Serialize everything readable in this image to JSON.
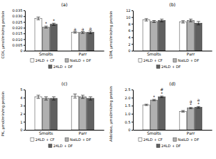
{
  "chart_data": [
    {
      "type": "bar",
      "title": "(a)",
      "ylabel": "COX, μmol/min/mg protein",
      "categories": [
        "Smolts",
        "Parr"
      ],
      "ylim": [
        0,
        0.035
      ],
      "yticks": [
        0,
        0.005,
        {
          "value": 0.01,
          "label": "0.010"
        },
        0.015,
        {
          "value": 0.02,
          "label": "0.020"
        },
        0.025,
        {
          "value": 0.03,
          "label": "0.030"
        },
        0.035
      ],
      "series": [
        {
          "name": "24LD + CF",
          "color": "#ffffff",
          "values": [
            0.028,
            0.016
          ],
          "errors": [
            0.0012,
            0.0008
          ],
          "annotations": [
            [],
            [
              "a"
            ]
          ]
        },
        {
          "name": "NatLD + DF",
          "color": "#b0b0b0",
          "values": [
            0.0205,
            0.0158
          ],
          "errors": [
            0.0008,
            0.0008
          ],
          "annotations": [
            [
              "*"
            ],
            [
              "a"
            ]
          ]
        },
        {
          "name": "24LD + DF",
          "color": "#606060",
          "values": [
            0.023,
            0.016
          ],
          "errors": [
            0.0009,
            0.0012
          ],
          "annotations": [
            [
              "*"
            ],
            [
              "a"
            ]
          ]
        }
      ]
    },
    {
      "type": "bar",
      "title": "(b)",
      "ylabel": "LDH, μmol/min/mg protein",
      "categories": [
        "Smolts",
        "Parr"
      ],
      "ylim": [
        0,
        12
      ],
      "yticks": [
        0,
        2,
        4,
        6,
        8,
        10,
        12
      ],
      "series": [
        {
          "name": "24LD + CF",
          "color": "#ffffff",
          "values": [
            9.2,
            8.6
          ],
          "errors": [
            0.35,
            0.35
          ],
          "annotations": [
            [],
            []
          ]
        },
        {
          "name": "NatLD + DF",
          "color": "#b0b0b0",
          "values": [
            8.7,
            9.0
          ],
          "errors": [
            0.3,
            0.4
          ],
          "annotations": [
            [],
            []
          ]
        },
        {
          "name": "24LD + DF",
          "color": "#606060",
          "values": [
            9.0,
            8.2
          ],
          "errors": [
            0.4,
            0.5
          ],
          "annotations": [
            [],
            []
          ]
        }
      ]
    },
    {
      "type": "bar",
      "title": "(c)",
      "ylabel": "PK, μmol/min/mg protein",
      "categories": [
        "Smolts",
        "Parr"
      ],
      "ylim": [
        0,
        5
      ],
      "yticks": [
        0,
        1,
        2,
        3,
        4,
        5
      ],
      "series": [
        {
          "name": "24LD + CF",
          "color": "#ffffff",
          "values": [
            4.1,
            4.2
          ],
          "errors": [
            0.2,
            0.25
          ],
          "annotations": [
            [],
            []
          ]
        },
        {
          "name": "NatLD + DF",
          "color": "#b0b0b0",
          "values": [
            3.9,
            4.1
          ],
          "errors": [
            0.2,
            0.2
          ],
          "annotations": [
            [],
            []
          ]
        },
        {
          "name": "24LD + DF",
          "color": "#606060",
          "values": [
            3.9,
            3.9
          ],
          "errors": [
            0.2,
            0.2
          ],
          "annotations": [
            [],
            []
          ]
        }
      ]
    },
    {
      "type": "bar",
      "title": "(d)",
      "ylabel": "Aldolase, μmol/min/mg protein",
      "categories": [
        "Smolts",
        "Parr"
      ],
      "ylim": [
        0,
        2.5
      ],
      "yticks": [
        0,
        0.5,
        {
          "value": 1,
          "label": "1.0"
        },
        1.5,
        {
          "value": 2,
          "label": "2.0"
        },
        2.5
      ],
      "series": [
        {
          "name": "24LD + CF",
          "color": "#ffffff",
          "values": [
            1.55,
            1.15
          ],
          "errors": [
            0.04,
            0.05
          ],
          "annotations": [
            [],
            []
          ]
        },
        {
          "name": "NatLD + DF",
          "color": "#b0b0b0",
          "values": [
            1.85,
            1.35
          ],
          "errors": [
            0.04,
            0.04
          ],
          "annotations": [
            [
              "*"
            ],
            [
              "a",
              "*"
            ]
          ]
        },
        {
          "name": "24LD + DF",
          "color": "#606060",
          "values": [
            2.05,
            1.4
          ],
          "errors": [
            0.05,
            0.05
          ],
          "annotations": [
            [
              "#",
              "*"
            ],
            [
              "a",
              "*"
            ]
          ]
        }
      ]
    }
  ]
}
